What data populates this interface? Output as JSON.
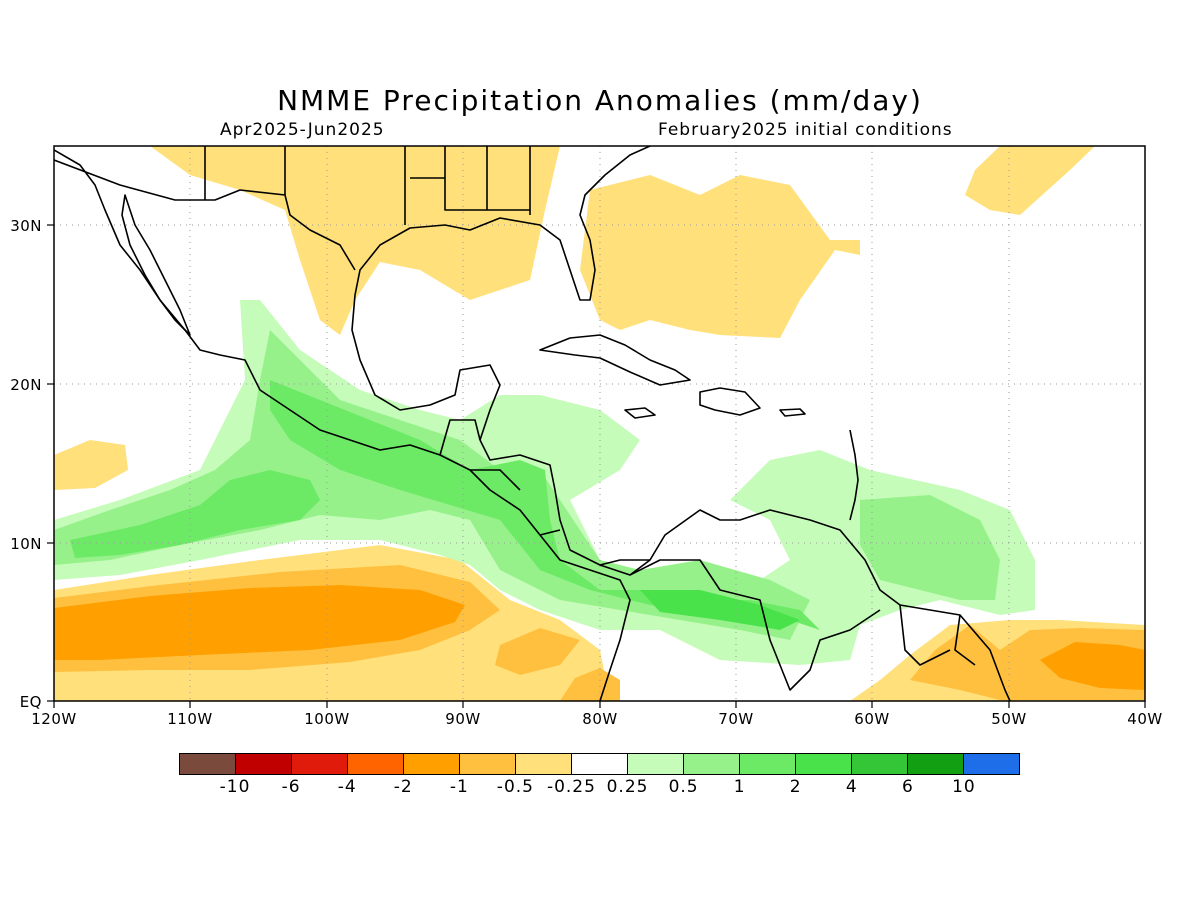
{
  "header": {
    "title": "NMME Precipitation Anomalies (mm/day)",
    "period": "Apr2025-Jun2025",
    "init": "February2025 initial conditions"
  },
  "map": {
    "lon_range": [
      -120,
      -40
    ],
    "lat_range": [
      0,
      35
    ],
    "lon_ticks": [
      {
        "v": -120,
        "label": "120W"
      },
      {
        "v": -110,
        "label": "110W"
      },
      {
        "v": -100,
        "label": "100W"
      },
      {
        "v": -90,
        "label": "90W"
      },
      {
        "v": -80,
        "label": "80W"
      },
      {
        "v": -70,
        "label": "70W"
      },
      {
        "v": -60,
        "label": "60W"
      },
      {
        "v": -50,
        "label": "50W"
      },
      {
        "v": -40,
        "label": "40W"
      }
    ],
    "lat_ticks": [
      {
        "v": 0,
        "label": "EQ"
      },
      {
        "v": 10,
        "label": "10N"
      },
      {
        "v": 20,
        "label": "20N"
      },
      {
        "v": 30,
        "label": "30N"
      }
    ]
  },
  "colorbar": {
    "colors": [
      "#7a4a3d",
      "#c00000",
      "#e01b0b",
      "#ff6400",
      "#ffa000",
      "#ffc040",
      "#ffe07a",
      "#ffffff",
      "#c5fcb9",
      "#97f18a",
      "#6cea66",
      "#49e24a",
      "#34c636",
      "#12a012",
      "#1d6ee8"
    ],
    "labels": [
      "-10",
      "-6",
      "-4",
      "-2",
      "-1",
      "-0.5",
      "-0.25",
      "0.25",
      "0.5",
      "1",
      "2",
      "4",
      "6",
      "10"
    ]
  }
}
